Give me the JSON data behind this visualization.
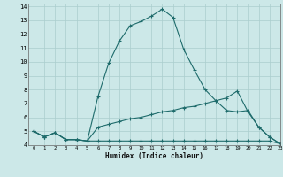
{
  "xlabel": "Humidex (Indice chaleur)",
  "xlim": [
    -0.5,
    23
  ],
  "ylim": [
    4,
    14.2
  ],
  "yticks": [
    4,
    5,
    6,
    7,
    8,
    9,
    10,
    11,
    12,
    13,
    14
  ],
  "xticks": [
    0,
    1,
    2,
    3,
    4,
    5,
    6,
    7,
    8,
    9,
    10,
    11,
    12,
    13,
    14,
    15,
    16,
    17,
    18,
    19,
    20,
    21,
    22,
    23
  ],
  "bg_color": "#cce8e8",
  "line_color": "#1e6b6b",
  "grid_color": "#aacece",
  "lines": [
    {
      "x": [
        0,
        1,
        2,
        3,
        4,
        5,
        6,
        7,
        8,
        9,
        10,
        11,
        12,
        13,
        14,
        15,
        16,
        17,
        18,
        19,
        20,
        21,
        22,
        23
      ],
      "y": [
        5.0,
        4.6,
        4.9,
        4.4,
        4.4,
        4.3,
        7.5,
        9.9,
        11.5,
        12.6,
        12.9,
        13.3,
        13.8,
        13.2,
        10.9,
        9.4,
        8.0,
        7.2,
        6.5,
        6.4,
        6.5,
        5.3,
        4.6,
        4.1
      ]
    },
    {
      "x": [
        0,
        1,
        2,
        3,
        4,
        5,
        6,
        7,
        8,
        9,
        10,
        11,
        12,
        13,
        14,
        15,
        16,
        17,
        18,
        19,
        20,
        21,
        22,
        23
      ],
      "y": [
        5.0,
        4.6,
        4.9,
        4.4,
        4.4,
        4.3,
        5.3,
        5.5,
        5.7,
        5.9,
        6.0,
        6.2,
        6.4,
        6.5,
        6.7,
        6.8,
        7.0,
        7.2,
        7.4,
        7.9,
        6.4,
        5.3,
        4.6,
        4.1
      ]
    },
    {
      "x": [
        0,
        1,
        2,
        3,
        4,
        5,
        6,
        7,
        8,
        9,
        10,
        11,
        12,
        13,
        14,
        15,
        16,
        17,
        18,
        19,
        20,
        21,
        22,
        23
      ],
      "y": [
        5.0,
        4.6,
        4.9,
        4.4,
        4.4,
        4.3,
        4.3,
        4.3,
        4.3,
        4.3,
        4.3,
        4.3,
        4.3,
        4.3,
        4.3,
        4.3,
        4.3,
        4.3,
        4.3,
        4.3,
        4.3,
        4.3,
        4.3,
        4.1
      ]
    }
  ]
}
